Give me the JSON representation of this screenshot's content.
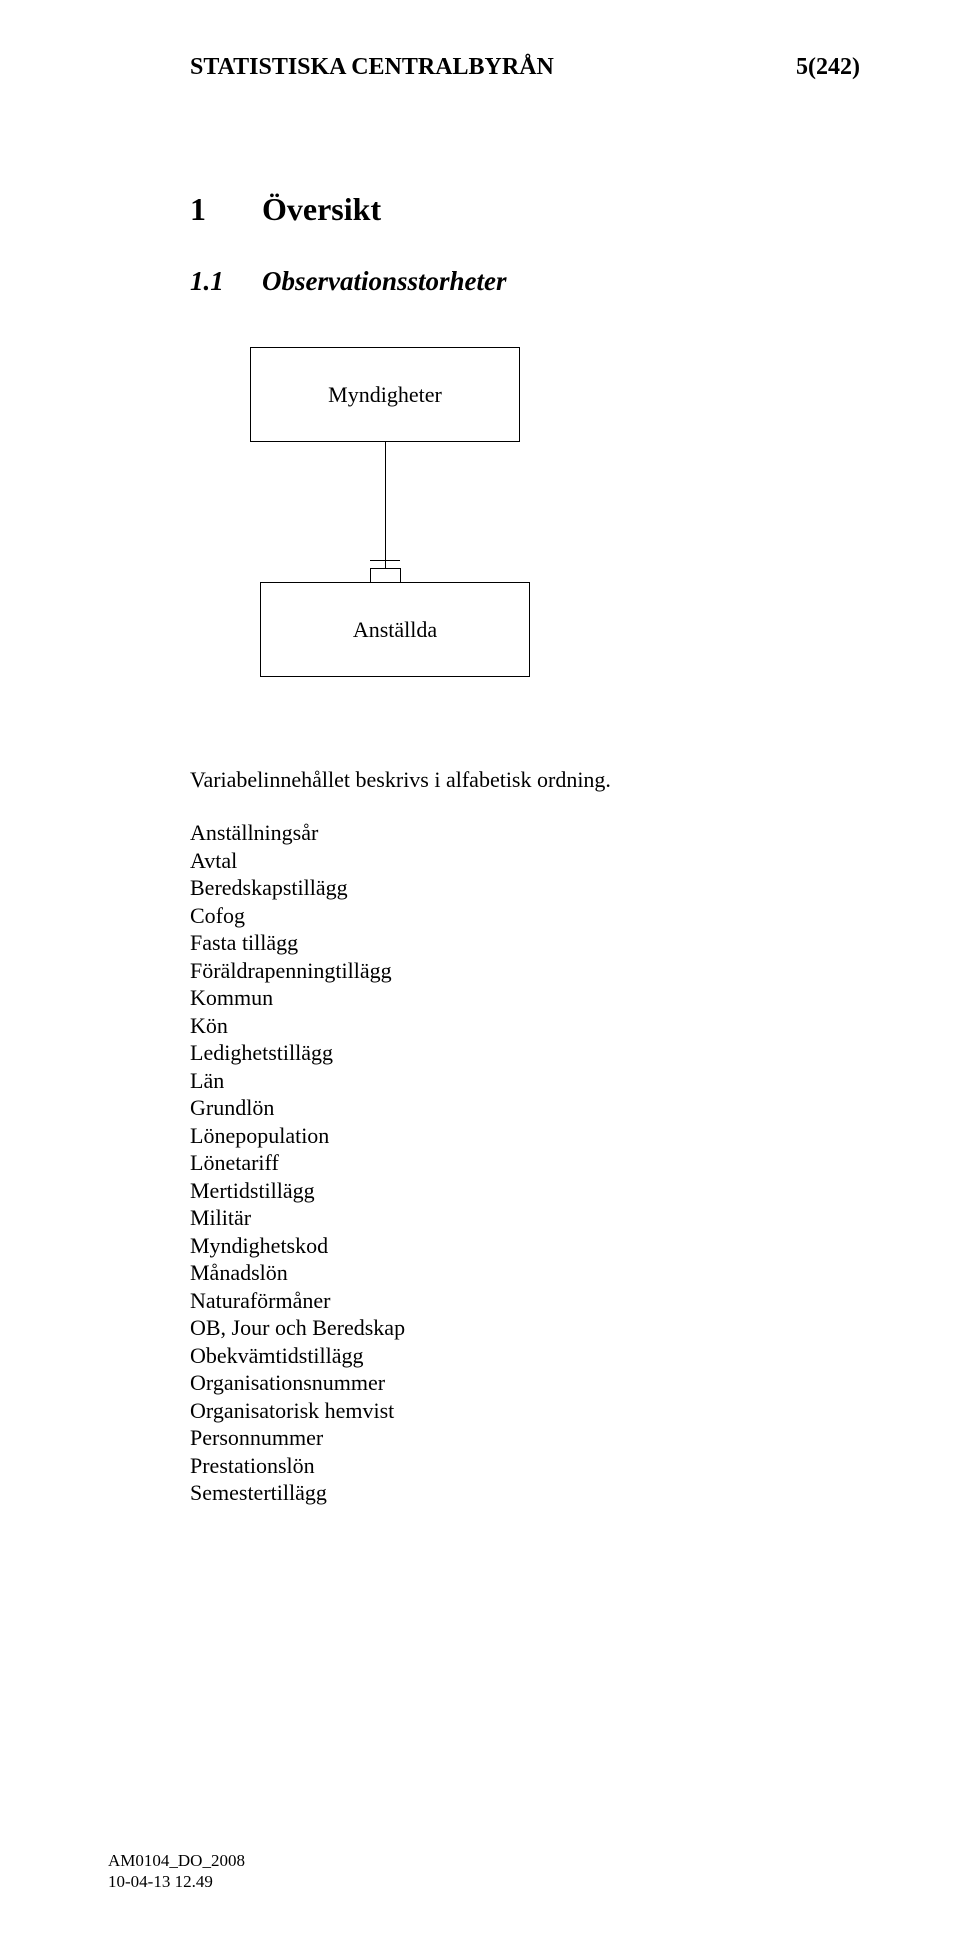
{
  "header": {
    "org": "STATISTISKA CENTRALBYRÅN",
    "page": "5(242)"
  },
  "section": {
    "num": "1",
    "title": "Översikt"
  },
  "subsection": {
    "num": "1.1",
    "title": "Observationsstorheter"
  },
  "diagram": {
    "type": "flowchart",
    "nodes": [
      {
        "id": "top",
        "label": "Myndigheter"
      },
      {
        "id": "bot",
        "label": "Anställda"
      }
    ],
    "edges": [
      {
        "from": "top",
        "to": "bot"
      }
    ],
    "box_border_color": "#000000",
    "box_bg_color": "#ffffff",
    "font_size": 22
  },
  "intro": "Variabelinnehållet beskrivs i alfabetisk ordning.",
  "terms": [
    "Anställningsår",
    "Avtal",
    "Beredskapstillägg",
    "Cofog",
    "Fasta tillägg",
    "Föräldrapenningtillägg",
    "Kommun",
    "Kön",
    "Ledighetstillägg",
    "Län",
    "Grundlön",
    "Lönepopulation",
    "Lönetariff",
    "Mertidstillägg",
    "Militär",
    "Myndighetskod",
    "Månadslön",
    "Naturaförmåner",
    "OB, Jour och Beredskap",
    "Obekvämtidstillägg",
    "Organisationsnummer",
    "Organisatorisk hemvist",
    "Personnummer",
    "Prestationslön",
    "Semestertillägg"
  ],
  "footer": {
    "doc_id": "AM0104_DO_2008",
    "timestamp": "10-04-13 12.49"
  }
}
